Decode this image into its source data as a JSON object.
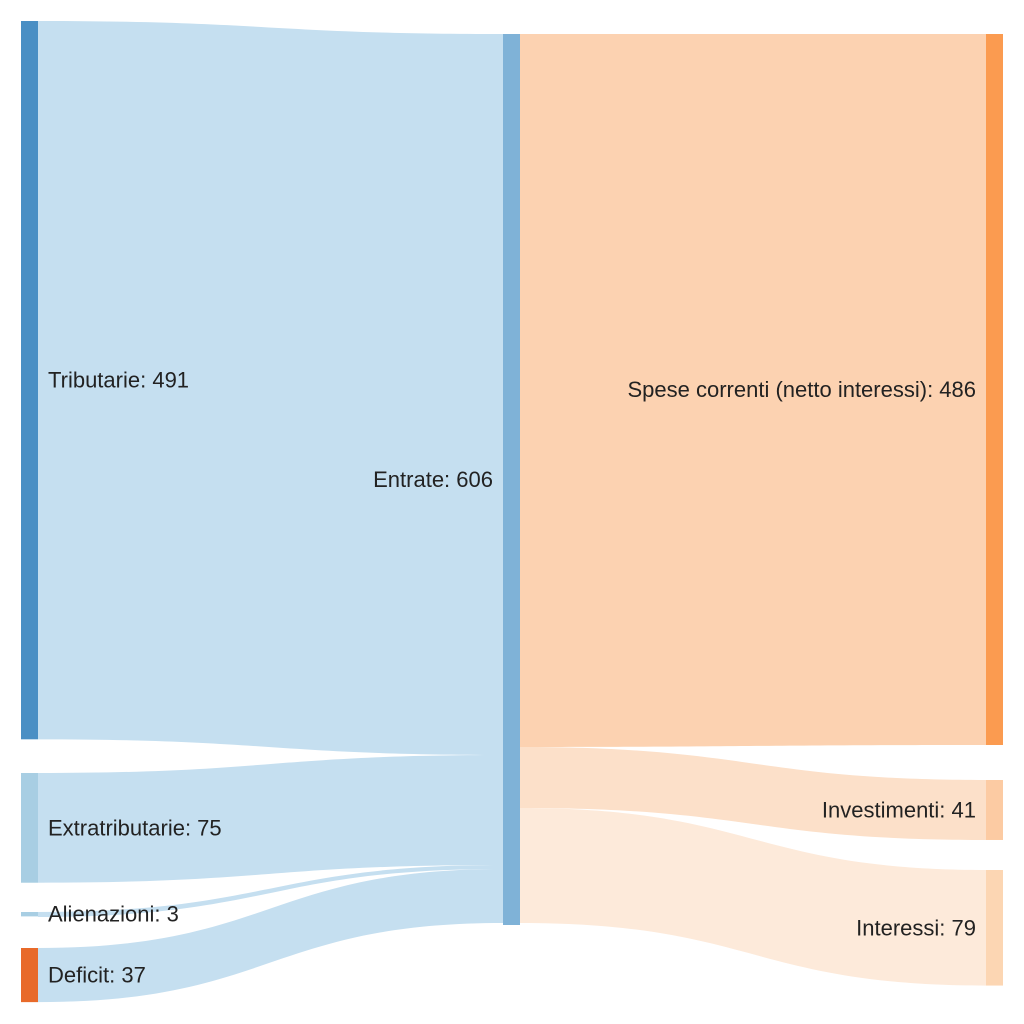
{
  "chart_data": {
    "type": "sankey",
    "nodes": [
      {
        "id": "tributarie",
        "label": "Tributarie: 491",
        "value": 491,
        "color": "#4a8fc4"
      },
      {
        "id": "extratributarie",
        "label": "Extratributarie: 75",
        "value": 75,
        "color": "#a8cee3"
      },
      {
        "id": "alienazioni",
        "label": "Alienazioni: 3",
        "value": 3,
        "color": "#a8cee3"
      },
      {
        "id": "deficit",
        "label": "Deficit: 37",
        "value": 37,
        "color": "#e86a2a"
      },
      {
        "id": "entrate",
        "label": "Entrate: 606",
        "value": 606,
        "color": "#7fb2d7"
      },
      {
        "id": "spese_correnti",
        "label": "Spese correnti (netto interessi): 486",
        "value": 486,
        "color": "#fb9b50"
      },
      {
        "id": "investimenti",
        "label": "Investimenti: 41",
        "value": 41,
        "color": "#fccba3"
      },
      {
        "id": "interessi",
        "label": "Interessi: 79",
        "value": 79,
        "color": "#fcd6b3"
      }
    ],
    "links": [
      {
        "source": "tributarie",
        "target": "entrate",
        "value": 491,
        "color": "#c5dff0"
      },
      {
        "source": "extratributarie",
        "target": "entrate",
        "value": 75,
        "color": "#c5dff0"
      },
      {
        "source": "alienazioni",
        "target": "entrate",
        "value": 3,
        "color": "#c5dff0"
      },
      {
        "source": "deficit",
        "target": "entrate",
        "value": 37,
        "color": "#c5dff0"
      },
      {
        "source": "entrate",
        "target": "spese_correnti",
        "value": 486,
        "color": "#fcd2b1"
      },
      {
        "source": "entrate",
        "target": "investimenti",
        "value": 41,
        "color": "#fce0c9"
      },
      {
        "source": "entrate",
        "target": "interessi",
        "value": 79,
        "color": "#fdeada"
      }
    ]
  }
}
